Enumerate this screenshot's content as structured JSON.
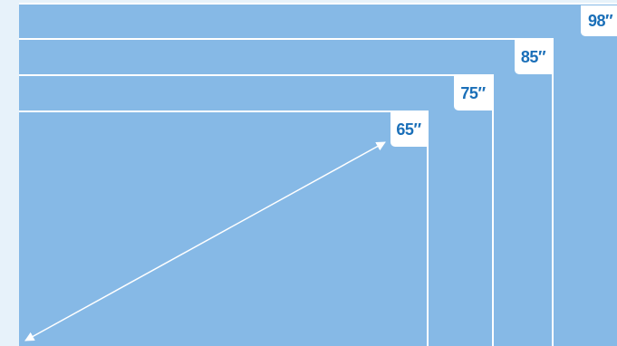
{
  "sizes": [
    {
      "id": "98",
      "label": "98″"
    },
    {
      "id": "85",
      "label": "85″"
    },
    {
      "id": "75",
      "label": "75″"
    },
    {
      "id": "65",
      "label": "65″"
    }
  ],
  "colors": {
    "background": "#e7f2fa",
    "screen": "#86b9e6",
    "outline": "#ffffff",
    "label_text": "#1a6fb8"
  }
}
